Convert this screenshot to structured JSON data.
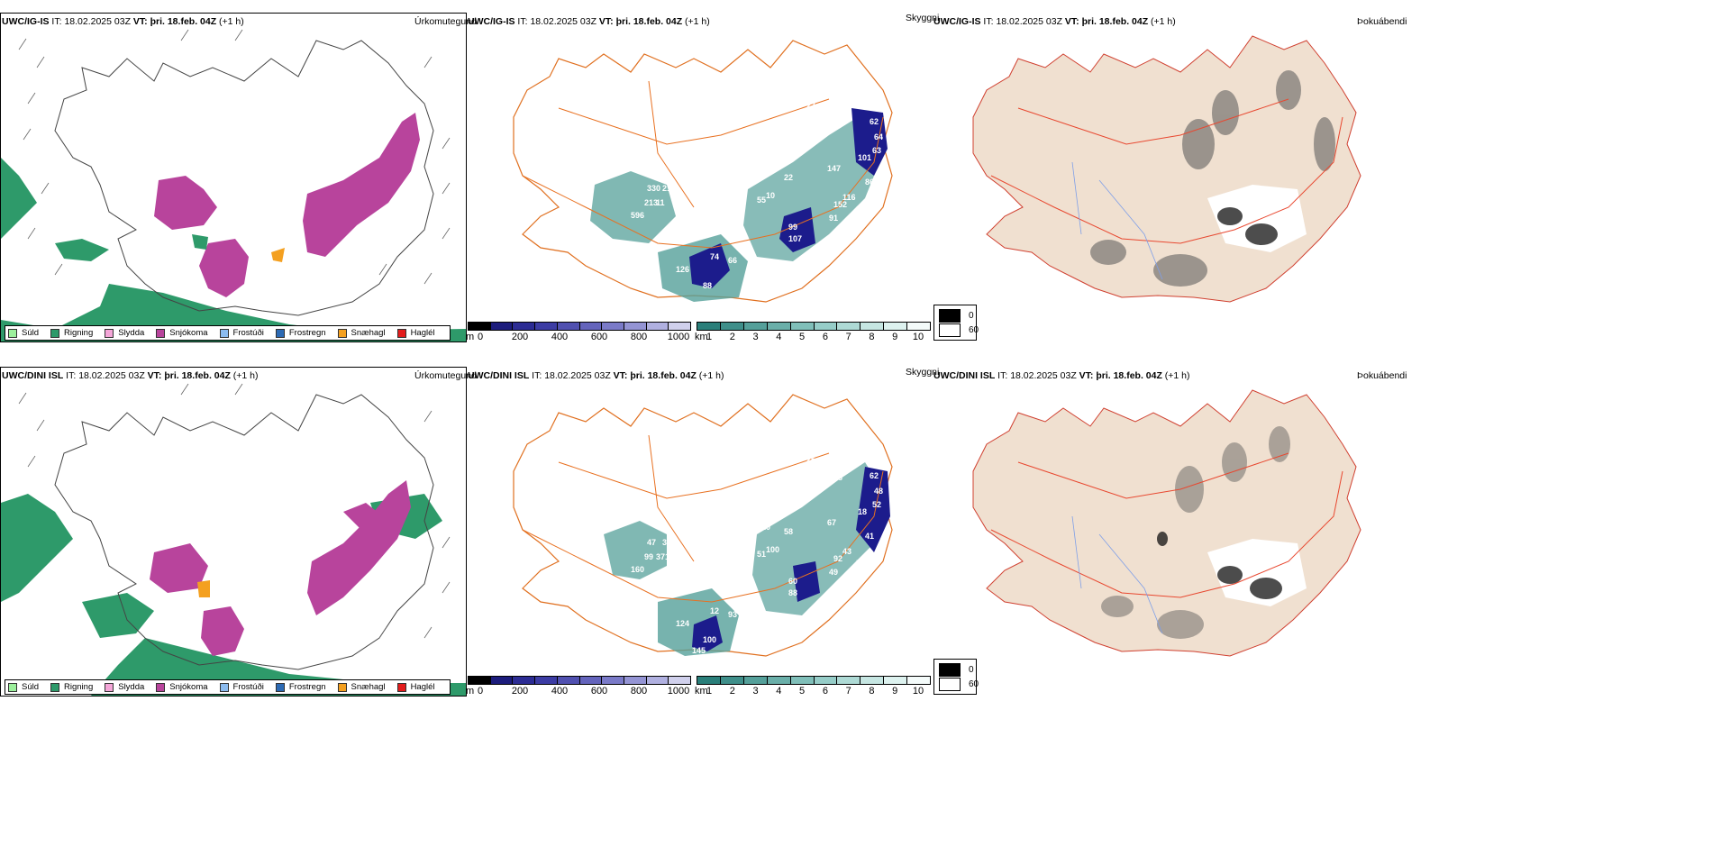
{
  "rows": [
    {
      "id": "top",
      "left_header": {
        "model": "UWC/IG-IS",
        "it_label": "IT:",
        "it_value": "18.02.2025 03Z",
        "vt_label": "VT:",
        "vt_value": "þri. 18.feb. 04Z",
        "offset": "(+1 h)"
      },
      "left_title": "Úrkomutegund",
      "mid_header": {
        "model": "UWC/IG-IS",
        "it_label": "IT:",
        "it_value": "18.02.2025 03Z",
        "vt_label": "VT:",
        "vt_value": "þri. 18.feb. 04Z",
        "offset": "(+1 h)"
      },
      "mid_title": "Skyggni",
      "right_header": {
        "model": "UWC/IG-IS",
        "it_label": "IT:",
        "it_value": "18.02.2025 03Z",
        "vt_label": "VT:",
        "vt_value": "þri. 18.feb. 04Z",
        "offset": "(+1 h)"
      },
      "right_title": "Þokuábendi",
      "numbers": [
        "27",
        "45",
        "60",
        "62",
        "64",
        "63",
        "37",
        "22",
        "55",
        "330",
        "211",
        "213",
        "596",
        "11",
        "27",
        "97",
        "10",
        "147",
        "101",
        "86",
        "116",
        "152",
        "91",
        "82",
        "99",
        "107",
        "74",
        "66",
        "126",
        "88"
      ]
    },
    {
      "id": "bottom",
      "left_header": {
        "model": "UWC/DINI ISL",
        "it_label": "IT:",
        "it_value": "18.02.2025 03Z",
        "vt_label": "VT:",
        "vt_value": "þri. 18.feb. 04Z",
        "offset": "(+1 h)"
      },
      "left_title": "Úrkomutegund",
      "mid_header": {
        "model": "UWC/DINI ISL",
        "it_label": "IT:",
        "it_value": "18.02.2025 03Z",
        "vt_label": "VT:",
        "vt_value": "þri. 18.feb. 04Z",
        "offset": "(+1 h)"
      },
      "mid_title": "Skyggni",
      "right_header": {
        "model": "UWC/DINI ISL",
        "it_label": "IT:",
        "it_value": "18.02.2025 03Z",
        "vt_label": "VT:",
        "vt_value": "þri. 18.feb. 04Z",
        "offset": "(+1 h)"
      },
      "right_title": "Þokuábendi",
      "numbers": [
        "25",
        "351",
        "28",
        "62",
        "48",
        "52",
        "56",
        "58",
        "51",
        "47",
        "34",
        "99",
        "160",
        "371",
        "119",
        "20",
        "100",
        "67",
        "18",
        "41",
        "43",
        "92",
        "49",
        "56",
        "60",
        "88",
        "12",
        "93",
        "124",
        "100",
        "145"
      ]
    }
  ],
  "precip_legend": [
    {
      "label": "Súld",
      "color": "#9cf09c"
    },
    {
      "label": "Rigning",
      "color": "#2e9a6a"
    },
    {
      "label": "Slydda",
      "color": "#f4a6d8"
    },
    {
      "label": "Snjókoma",
      "color": "#b8449c"
    },
    {
      "label": "Frostúði",
      "color": "#8cbcf0"
    },
    {
      "label": "Frostregn",
      "color": "#2c6ab4"
    },
    {
      "label": "Snæhagl",
      "color": "#f4a020"
    },
    {
      "label": "Haglél",
      "color": "#e41c1c"
    }
  ],
  "cbar_m": {
    "unit": "m",
    "ticks": [
      "0",
      "200",
      "400",
      "600",
      "800",
      "1000"
    ],
    "colors": [
      "#000000",
      "#1c1c7c",
      "#2c2c94",
      "#3c3ca4",
      "#5050b0",
      "#6464bc",
      "#7a7ac8",
      "#9494d4",
      "#b0b0e0",
      "#d0d0ec"
    ]
  },
  "cbar_km": {
    "unit": "km",
    "ticks": [
      "1",
      "2",
      "3",
      "4",
      "5",
      "6",
      "7",
      "8",
      "9",
      "10"
    ],
    "colors": [
      "#2a7f7a",
      "#3f8f8a",
      "#55a09a",
      "#6aafa9",
      "#80bfb9",
      "#96cdc8",
      "#aedad5",
      "#c6e6e2",
      "#ddf2ef",
      "#f4fbfa"
    ]
  },
  "vis_key": {
    "top": "0",
    "bottom": "60",
    "top_color": "#000000",
    "bottom_color": "#ffffff"
  },
  "colors": {
    "rain": "#2e9a6a",
    "snow": "#b8449c",
    "land_fog": "#f0e0d0",
    "road": "#e87020",
    "road_red": "#e84830",
    "river": "#7f9fe8",
    "blue_dark": "#1c1c8c",
    "teal": "#3f8f8a"
  }
}
